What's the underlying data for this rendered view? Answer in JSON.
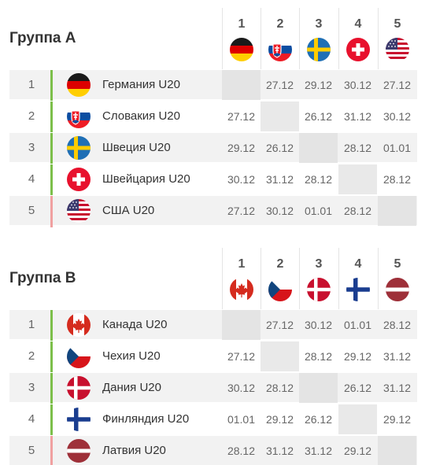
{
  "groups": [
    {
      "id": "a",
      "title": "Группа А",
      "columns": [
        {
          "num": "1",
          "flag": "germany"
        },
        {
          "num": "2",
          "flag": "slovakia"
        },
        {
          "num": "3",
          "flag": "sweden"
        },
        {
          "num": "4",
          "flag": "switzerland"
        },
        {
          "num": "5",
          "flag": "usa"
        }
      ],
      "rows": [
        {
          "rank": "1",
          "team": "Германия U20",
          "flag": "germany",
          "status": "green",
          "cells": [
            "",
            "27.12",
            "29.12",
            "30.12",
            "27.12"
          ]
        },
        {
          "rank": "2",
          "team": "Словакия U20",
          "flag": "slovakia",
          "status": "green",
          "cells": [
            "27.12",
            "",
            "26.12",
            "31.12",
            "30.12"
          ]
        },
        {
          "rank": "3",
          "team": "Швеция U20",
          "flag": "sweden",
          "status": "green",
          "cells": [
            "29.12",
            "26.12",
            "",
            "28.12",
            "01.01"
          ]
        },
        {
          "rank": "4",
          "team": "Швейцария U20",
          "flag": "switzerland",
          "status": "green",
          "cells": [
            "30.12",
            "31.12",
            "28.12",
            "",
            "28.12"
          ]
        },
        {
          "rank": "5",
          "team": "США U20",
          "flag": "usa",
          "status": "red",
          "cells": [
            "27.12",
            "30.12",
            "01.01",
            "28.12",
            ""
          ]
        }
      ]
    },
    {
      "id": "b",
      "title": "Группа B",
      "columns": [
        {
          "num": "1",
          "flag": "canada"
        },
        {
          "num": "2",
          "flag": "czechia"
        },
        {
          "num": "3",
          "flag": "denmark"
        },
        {
          "num": "4",
          "flag": "finland"
        },
        {
          "num": "5",
          "flag": "latvia"
        }
      ],
      "rows": [
        {
          "rank": "1",
          "team": "Канада U20",
          "flag": "canada",
          "status": "green",
          "cells": [
            "",
            "27.12",
            "30.12",
            "01.01",
            "28.12"
          ]
        },
        {
          "rank": "2",
          "team": "Чехия U20",
          "flag": "czechia",
          "status": "green",
          "cells": [
            "27.12",
            "",
            "28.12",
            "29.12",
            "31.12"
          ]
        },
        {
          "rank": "3",
          "team": "Дания U20",
          "flag": "denmark",
          "status": "green",
          "cells": [
            "30.12",
            "28.12",
            "",
            "26.12",
            "31.12"
          ]
        },
        {
          "rank": "4",
          "team": "Финляндия U20",
          "flag": "finland",
          "status": "green",
          "cells": [
            "01.01",
            "29.12",
            "26.12",
            "",
            "29.12"
          ]
        },
        {
          "rank": "5",
          "team": "Латвия U20",
          "flag": "latvia",
          "status": "red",
          "cells": [
            "28.12",
            "31.12",
            "31.12",
            "29.12",
            ""
          ]
        }
      ]
    }
  ]
}
